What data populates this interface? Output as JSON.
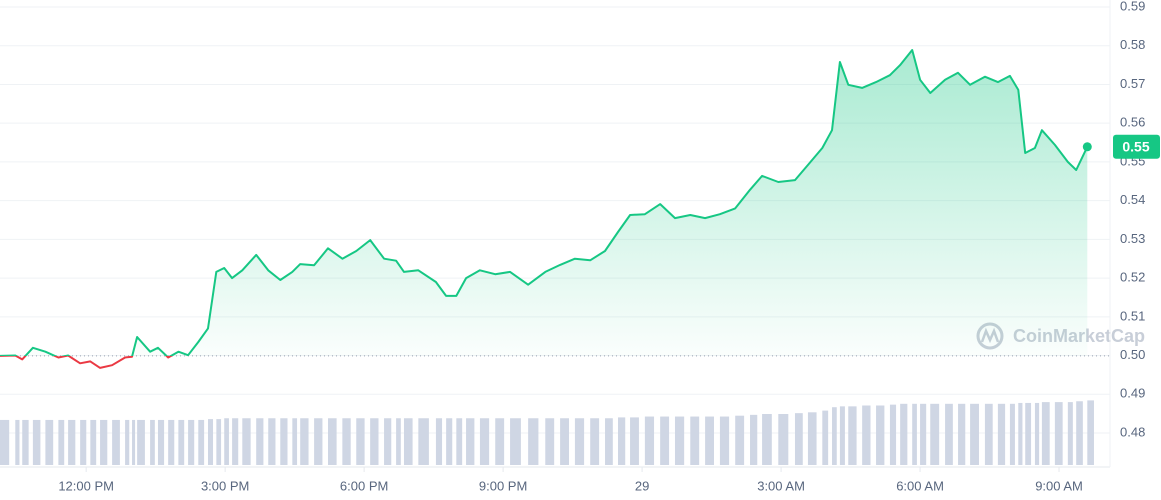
{
  "chart_data": {
    "type": "line",
    "x": [
      10.14,
      10.47,
      10.62,
      10.85,
      11.12,
      11.4,
      11.61,
      11.87,
      12.09,
      12.3,
      12.56,
      12.84,
      12.99,
      13.1,
      13.38,
      13.55,
      13.77,
      13.99,
      14.2,
      14.42,
      14.63,
      14.81,
      14.98,
      15.15,
      15.37,
      15.67,
      15.93,
      16.19,
      16.45,
      16.62,
      16.92,
      17.22,
      17.53,
      17.83,
      18.13,
      18.43,
      18.69,
      18.86,
      19.17,
      19.55,
      19.77,
      19.99,
      20.2,
      20.5,
      20.83,
      21.15,
      21.54,
      21.91,
      22.23,
      22.55,
      22.88,
      23.2,
      23.48,
      23.74,
      24.06,
      24.39,
      24.71,
      25.04,
      25.36,
      25.68,
      26.01,
      26.33,
      26.59,
      26.94,
      27.3,
      27.58,
      27.89,
      28.1,
      28.27,
      28.45,
      28.75,
      29.05,
      29.35,
      29.57,
      29.83,
      30.0,
      30.22,
      30.54,
      30.82,
      31.08,
      31.4,
      31.68,
      31.94,
      32.12,
      32.27,
      32.48,
      32.63,
      32.91,
      33.19,
      33.37,
      33.61
    ],
    "series": [
      {
        "color": "#16c784",
        "values": [
          0.4999,
          0.5,
          0.499,
          0.502,
          0.501,
          0.4995,
          0.5,
          0.498,
          0.4985,
          0.4968,
          0.4975,
          0.4995,
          0.4997,
          0.5048,
          0.501,
          0.502,
          0.4995,
          0.501,
          0.5001,
          0.5035,
          0.507,
          0.5216,
          0.5226,
          0.52,
          0.522,
          0.526,
          0.522,
          0.5195,
          0.5216,
          0.5236,
          0.5233,
          0.5277,
          0.525,
          0.527,
          0.5298,
          0.525,
          0.5245,
          0.5216,
          0.522,
          0.519,
          0.5154,
          0.5154,
          0.52,
          0.522,
          0.521,
          0.5216,
          0.5183,
          0.5216,
          0.5234,
          0.525,
          0.5246,
          0.527,
          0.5319,
          0.5363,
          0.5365,
          0.5391,
          0.5355,
          0.5363,
          0.5355,
          0.5365,
          0.538,
          0.5428,
          0.5464,
          0.5448,
          0.5453,
          0.5492,
          0.5536,
          0.5582,
          0.5758,
          0.5699,
          0.5691,
          0.5706,
          0.5724,
          0.575,
          0.5789,
          0.5712,
          0.5678,
          0.5712,
          0.573,
          0.5699,
          0.572,
          0.5706,
          0.5722,
          0.5686,
          0.5523,
          0.5536,
          0.5582,
          0.5544,
          0.55,
          0.5479,
          0.5539
        ]
      },
      {
        "color": "#cfd6e4",
        "values": [
          53,
          53,
          53,
          53,
          53,
          53,
          53,
          53,
          53,
          53,
          53,
          53,
          53,
          53,
          53,
          53,
          53,
          53,
          53,
          53,
          54,
          54,
          55,
          55,
          55,
          55,
          55,
          55,
          55,
          55,
          55,
          55,
          55,
          55,
          55,
          55,
          55,
          55,
          55,
          55,
          55,
          55,
          55,
          55,
          55,
          55,
          55,
          55,
          55,
          55,
          55,
          55,
          56,
          56,
          57,
          57,
          57,
          57,
          57,
          57,
          58,
          59,
          60,
          60,
          61,
          62,
          64,
          68,
          69,
          69,
          70,
          70,
          71,
          72,
          72,
          72,
          72,
          72,
          72,
          72,
          72,
          72,
          72,
          73,
          73,
          73,
          74,
          74,
          74,
          75,
          76
        ]
      }
    ],
    "below_color": "#ea3943",
    "baseline": 0.4999,
    "price_badge": "0.55",
    "watermark": "CoinMarketCap",
    "xlim": [
      10.14,
      34.1
    ],
    "xticks": [
      {
        "value": 12,
        "label": "12:00 PM"
      },
      {
        "value": 15,
        "label": "3:00 PM"
      },
      {
        "value": 18,
        "label": "6:00 PM"
      },
      {
        "value": 21,
        "label": "9:00 PM"
      },
      {
        "value": 24,
        "label": "29"
      },
      {
        "value": 27,
        "label": "3:00 AM"
      },
      {
        "value": 30,
        "label": "6:00 AM"
      },
      {
        "value": 33,
        "label": "9:00 AM"
      }
    ],
    "ylim": [
      0.48,
      0.59
    ],
    "yticks": [
      {
        "value": 0.48,
        "label": "0.48"
      },
      {
        "value": 0.49,
        "label": "0.49"
      },
      {
        "value": 0.5,
        "label": "0.50"
      },
      {
        "value": 0.51,
        "label": "0.51"
      },
      {
        "value": 0.52,
        "label": "0.52"
      },
      {
        "value": 0.53,
        "label": "0.53"
      },
      {
        "value": 0.54,
        "label": "0.54"
      },
      {
        "value": 0.55,
        "label": "0.55"
      },
      {
        "value": 0.56,
        "label": "0.56"
      },
      {
        "value": 0.57,
        "label": "0.57"
      },
      {
        "value": 0.58,
        "label": "0.58"
      },
      {
        "value": 0.59,
        "label": "0.59"
      }
    ],
    "volume_lim": [
      0,
      100
    ],
    "grid": true
  }
}
